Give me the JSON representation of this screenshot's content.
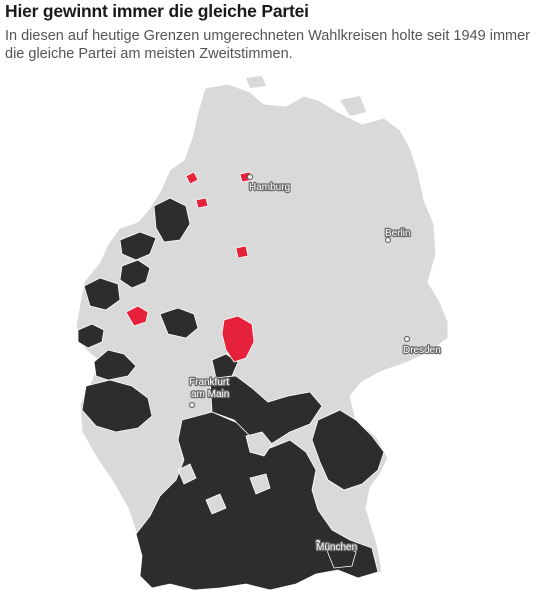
{
  "header": {
    "title": "Hier gewinnt immer die gleiche Partei",
    "subtitle": "In diesen auf heutige Grenzen umgerechneten Wahlkreisen holte seit 1949 immer die gleiche Partei am meisten Zweitstimmen."
  },
  "map": {
    "colors": {
      "base": "#d9d9d9",
      "party_black": "#2d2d2d",
      "party_red": "#e5213b",
      "border": "#ffffff"
    },
    "cities": [
      {
        "id": "hamburg",
        "label": "Hamburg",
        "lines": [
          "Hamburg"
        ]
      },
      {
        "id": "berlin",
        "label": "Berlin",
        "lines": [
          "Berlin"
        ]
      },
      {
        "id": "dresden",
        "label": "Dresden",
        "lines": [
          "Dresden"
        ]
      },
      {
        "id": "frankfurt",
        "label": "Frankfurt am Main",
        "lines": [
          "Frankfurt",
          "am Main"
        ]
      },
      {
        "id": "muenchen",
        "label": "München",
        "lines": [
          "München"
        ]
      }
    ]
  }
}
